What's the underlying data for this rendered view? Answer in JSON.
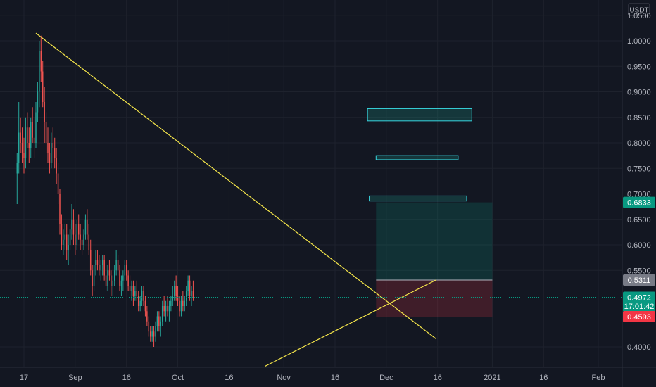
{
  "chart_data": {
    "type": "candlestick",
    "quote_currency": "USDT",
    "y_ticks": [
      "1.0500",
      "1.0000",
      "0.9500",
      "0.9000",
      "0.8500",
      "0.8000",
      "0.7500",
      "0.7000",
      "0.6500",
      "0.6000",
      "0.5500",
      "0.4000"
    ],
    "x_ticks": [
      {
        "label": "17",
        "date": "2020-08-17"
      },
      {
        "label": "Sep",
        "date": "2020-09-01"
      },
      {
        "label": "16",
        "date": "2020-09-16"
      },
      {
        "label": "Oct",
        "date": "2020-10-01"
      },
      {
        "label": "16",
        "date": "2020-10-16"
      },
      {
        "label": "Nov",
        "date": "2020-11-01"
      },
      {
        "label": "16",
        "date": "2020-11-16"
      },
      {
        "label": "Dec",
        "date": "2020-12-01"
      },
      {
        "label": "16",
        "date": "2020-12-16"
      },
      {
        "label": "2021",
        "date": "2021-01-01"
      },
      {
        "label": "16",
        "date": "2021-01-16"
      },
      {
        "label": "Feb",
        "date": "2021-02-01"
      }
    ],
    "y_range": [
      0.36,
      1.08
    ],
    "x_range": [
      "2020-08-10",
      "2021-02-08"
    ],
    "price_labels": [
      {
        "value": "0.6833",
        "price": 0.6833,
        "color": "#089981"
      },
      {
        "value": "0.5311",
        "price": 0.5311,
        "color": "#787b86"
      },
      {
        "value": "0.4972",
        "price": 0.4972,
        "color": "#089981"
      },
      {
        "value": "17:01:42",
        "price": 0.48,
        "color": "#089981"
      },
      {
        "value": "0.4593",
        "price": 0.4593,
        "color": "#f23645"
      }
    ],
    "last_price": 0.4972,
    "candles": {
      "start_date": "2020-08-15T00:00",
      "interval_hours": 12,
      "ohlc": [
        [
          0.74,
          0.78,
          0.68,
          0.76
        ],
        [
          0.76,
          0.88,
          0.74,
          0.82
        ],
        [
          0.82,
          0.85,
          0.78,
          0.8
        ],
        [
          0.8,
          0.83,
          0.76,
          0.78
        ],
        [
          0.78,
          0.81,
          0.74,
          0.77
        ],
        [
          0.77,
          0.85,
          0.75,
          0.83
        ],
        [
          0.83,
          0.86,
          0.79,
          0.8
        ],
        [
          0.8,
          0.83,
          0.76,
          0.79
        ],
        [
          0.79,
          0.85,
          0.77,
          0.84
        ],
        [
          0.84,
          0.87,
          0.8,
          0.81
        ],
        [
          0.81,
          0.85,
          0.77,
          0.8
        ],
        [
          0.8,
          0.88,
          0.79,
          0.86
        ],
        [
          0.86,
          0.92,
          0.84,
          0.9
        ],
        [
          0.9,
          1.0,
          0.87,
          0.98
        ],
        [
          0.98,
          1.01,
          0.92,
          0.94
        ],
        [
          0.94,
          0.96,
          0.87,
          0.88
        ],
        [
          0.88,
          0.91,
          0.8,
          0.84
        ],
        [
          0.84,
          0.86,
          0.78,
          0.8
        ],
        [
          0.8,
          0.83,
          0.76,
          0.78
        ],
        [
          0.78,
          0.8,
          0.74,
          0.76
        ],
        [
          0.76,
          0.82,
          0.75,
          0.8
        ],
        [
          0.8,
          0.83,
          0.76,
          0.79
        ],
        [
          0.79,
          0.81,
          0.75,
          0.77
        ],
        [
          0.77,
          0.79,
          0.72,
          0.74
        ],
        [
          0.74,
          0.76,
          0.68,
          0.7
        ],
        [
          0.7,
          0.71,
          0.62,
          0.64
        ],
        [
          0.64,
          0.66,
          0.59,
          0.6
        ],
        [
          0.6,
          0.63,
          0.58,
          0.61
        ],
        [
          0.61,
          0.64,
          0.59,
          0.62
        ],
        [
          0.62,
          0.64,
          0.57,
          0.59
        ],
        [
          0.59,
          0.62,
          0.56,
          0.6
        ],
        [
          0.6,
          0.64,
          0.59,
          0.63
        ],
        [
          0.63,
          0.68,
          0.61,
          0.65
        ],
        [
          0.65,
          0.67,
          0.6,
          0.62
        ],
        [
          0.62,
          0.64,
          0.58,
          0.6
        ],
        [
          0.6,
          0.65,
          0.59,
          0.64
        ],
        [
          0.64,
          0.66,
          0.61,
          0.62
        ],
        [
          0.62,
          0.64,
          0.59,
          0.61
        ],
        [
          0.61,
          0.63,
          0.58,
          0.6
        ],
        [
          0.6,
          0.63,
          0.59,
          0.62
        ],
        [
          0.62,
          0.66,
          0.61,
          0.65
        ],
        [
          0.65,
          0.67,
          0.61,
          0.62
        ],
        [
          0.62,
          0.64,
          0.58,
          0.59
        ],
        [
          0.59,
          0.61,
          0.54,
          0.55
        ],
        [
          0.55,
          0.56,
          0.5,
          0.52
        ],
        [
          0.52,
          0.57,
          0.51,
          0.56
        ],
        [
          0.56,
          0.59,
          0.54,
          0.57
        ],
        [
          0.57,
          0.59,
          0.55,
          0.56
        ],
        [
          0.56,
          0.58,
          0.54,
          0.55
        ],
        [
          0.55,
          0.57,
          0.53,
          0.56
        ],
        [
          0.56,
          0.58,
          0.54,
          0.57
        ],
        [
          0.57,
          0.58,
          0.53,
          0.54
        ],
        [
          0.54,
          0.56,
          0.51,
          0.52
        ],
        [
          0.52,
          0.56,
          0.51,
          0.55
        ],
        [
          0.55,
          0.57,
          0.53,
          0.54
        ],
        [
          0.54,
          0.55,
          0.5,
          0.52
        ],
        [
          0.52,
          0.54,
          0.5,
          0.53
        ],
        [
          0.53,
          0.56,
          0.52,
          0.55
        ],
        [
          0.55,
          0.59,
          0.54,
          0.57
        ],
        [
          0.57,
          0.58,
          0.54,
          0.55
        ],
        [
          0.55,
          0.56,
          0.51,
          0.52
        ],
        [
          0.52,
          0.54,
          0.5,
          0.53
        ],
        [
          0.53,
          0.55,
          0.51,
          0.54
        ],
        [
          0.54,
          0.57,
          0.53,
          0.56
        ],
        [
          0.56,
          0.57,
          0.53,
          0.54
        ],
        [
          0.54,
          0.55,
          0.51,
          0.52
        ],
        [
          0.52,
          0.54,
          0.5,
          0.51
        ],
        [
          0.51,
          0.53,
          0.49,
          0.52
        ],
        [
          0.52,
          0.53,
          0.48,
          0.5
        ],
        [
          0.5,
          0.52,
          0.49,
          0.51
        ],
        [
          0.51,
          0.53,
          0.49,
          0.5
        ],
        [
          0.5,
          0.51,
          0.47,
          0.48
        ],
        [
          0.48,
          0.5,
          0.47,
          0.49
        ],
        [
          0.49,
          0.52,
          0.48,
          0.51
        ],
        [
          0.51,
          0.52,
          0.48,
          0.49
        ],
        [
          0.49,
          0.5,
          0.46,
          0.47
        ],
        [
          0.47,
          0.48,
          0.44,
          0.45
        ],
        [
          0.45,
          0.46,
          0.42,
          0.43
        ],
        [
          0.43,
          0.44,
          0.41,
          0.42
        ],
        [
          0.42,
          0.44,
          0.41,
          0.43
        ],
        [
          0.43,
          0.44,
          0.4,
          0.42
        ],
        [
          0.42,
          0.45,
          0.41,
          0.44
        ],
        [
          0.44,
          0.47,
          0.43,
          0.46
        ],
        [
          0.46,
          0.47,
          0.43,
          0.44
        ],
        [
          0.44,
          0.46,
          0.42,
          0.45
        ],
        [
          0.45,
          0.49,
          0.44,
          0.48
        ],
        [
          0.48,
          0.5,
          0.46,
          0.47
        ],
        [
          0.47,
          0.49,
          0.45,
          0.48
        ],
        [
          0.48,
          0.5,
          0.46,
          0.47
        ],
        [
          0.47,
          0.49,
          0.45,
          0.48
        ],
        [
          0.48,
          0.5,
          0.47,
          0.49
        ],
        [
          0.49,
          0.52,
          0.48,
          0.5
        ],
        [
          0.5,
          0.53,
          0.49,
          0.52
        ],
        [
          0.52,
          0.54,
          0.49,
          0.5
        ],
        [
          0.5,
          0.52,
          0.48,
          0.49
        ],
        [
          0.49,
          0.5,
          0.46,
          0.47
        ],
        [
          0.47,
          0.5,
          0.46,
          0.49
        ],
        [
          0.49,
          0.51,
          0.47,
          0.48
        ],
        [
          0.48,
          0.5,
          0.47,
          0.49
        ],
        [
          0.49,
          0.52,
          0.48,
          0.51
        ],
        [
          0.51,
          0.54,
          0.5,
          0.53
        ],
        [
          0.53,
          0.54,
          0.49,
          0.5
        ],
        [
          0.5,
          0.52,
          0.48,
          0.51
        ],
        [
          0.51,
          0.53,
          0.49,
          0.497
        ]
      ]
    },
    "trendlines": [
      {
        "name": "descending-resistance",
        "from": {
          "date": "2020-08-20T12:00",
          "price": 1.015
        },
        "to": {
          "date": "2020-12-15T12:00",
          "price": 0.416
        }
      },
      {
        "name": "ascending-support",
        "from": {
          "date": "2020-10-26T12:00",
          "price": 0.362
        },
        "to": {
          "date": "2020-12-15T12:00",
          "price": 0.531
        }
      }
    ],
    "target_boxes": [
      {
        "from": "2020-11-25T12:00",
        "to": "2020-12-26T00:00",
        "top": 0.867,
        "bottom": 0.843
      },
      {
        "from": "2020-11-28T00:00",
        "to": "2020-12-22T00:00",
        "top": 0.775,
        "bottom": 0.767
      },
      {
        "from": "2020-11-26T00:00",
        "to": "2020-12-24T12:00",
        "top": 0.696,
        "bottom": 0.686
      }
    ],
    "position": {
      "from": "2020-11-28T00:00",
      "to": "2021-01-01T00:00",
      "target": 0.6833,
      "entry": 0.5311,
      "stop": 0.4593
    }
  }
}
